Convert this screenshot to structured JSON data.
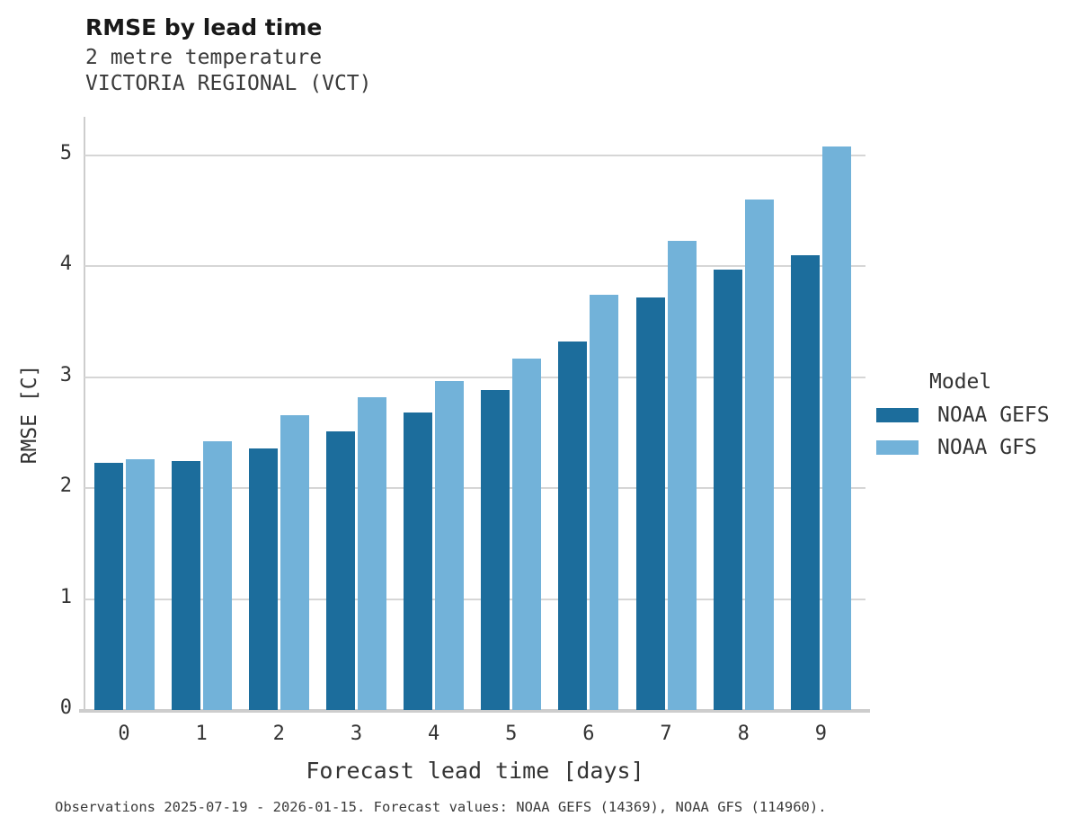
{
  "chart_data": {
    "type": "bar",
    "title": "RMSE by lead time",
    "subtitle": [
      "2 metre temperature",
      "VICTORIA REGIONAL (VCT)"
    ],
    "xlabel": "Forecast lead time [days]",
    "ylabel": "RMSE [C]",
    "categories": [
      "0",
      "1",
      "2",
      "3",
      "4",
      "5",
      "6",
      "7",
      "8",
      "9"
    ],
    "yticks": [
      0,
      1,
      2,
      3,
      4,
      5
    ],
    "ylim": [
      0,
      5.34
    ],
    "grid": "horizontal",
    "legend": {
      "title": "Model",
      "position": "right"
    },
    "series": [
      {
        "name": "NOAA GEFS",
        "color": "#1c6d9c",
        "values": [
          2.23,
          2.24,
          2.36,
          2.51,
          2.68,
          2.88,
          3.32,
          3.72,
          3.97,
          4.1
        ]
      },
      {
        "name": "NOAA GFS",
        "color": "#72b2d9",
        "values": [
          2.26,
          2.42,
          2.66,
          2.82,
          2.96,
          3.17,
          3.74,
          4.23,
          4.6,
          5.08
        ]
      }
    ],
    "footnote": "Observations 2025-07-19 - 2026-01-15. Forecast values: NOAA GEFS (14369), NOAA GFS (114960)."
  }
}
